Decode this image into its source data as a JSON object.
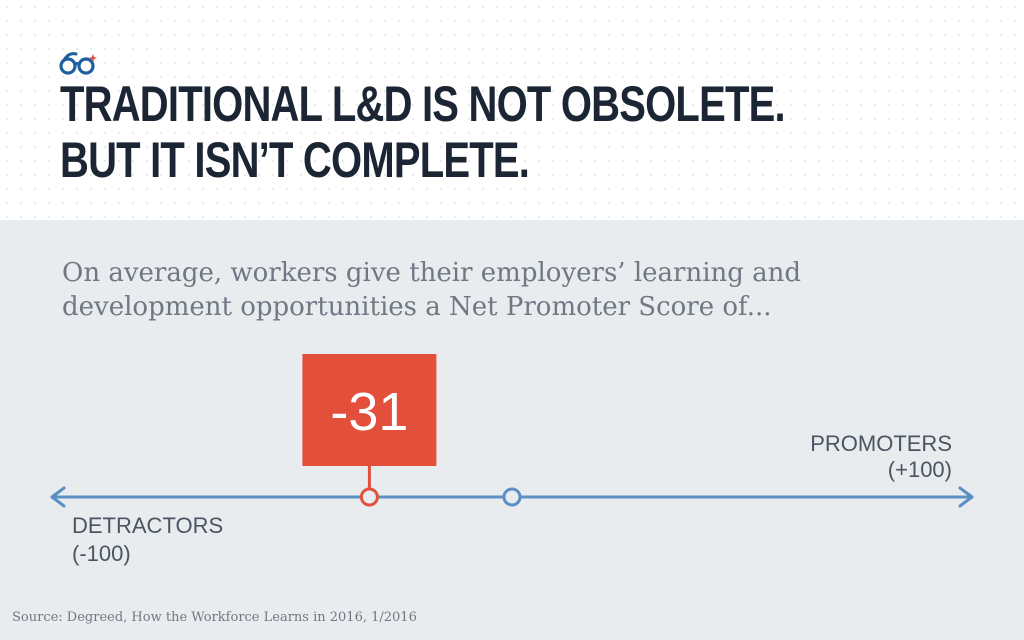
{
  "headline": {
    "line1": "TRADITIONAL L&D IS NOT OBSOLETE.",
    "line2": "BUT IT ISN’T COMPLETE."
  },
  "subtitle": {
    "line1": "On average, workers give their employers’ learning and",
    "line2": "development opportunities a Net Promoter Score of..."
  },
  "source": "Source: Degreed, How the Workforce Learns in 2016, 1/2016",
  "icon": "glasses-logo-icon",
  "colors": {
    "headline": "#1b2533",
    "axis": "#5b8fc4",
    "marker": "#e2503c",
    "subtitle_text": "#6f7883",
    "panel_bg": "#e9ecef"
  },
  "chart_data": {
    "type": "scale",
    "value": -31,
    "value_label": "-31",
    "min": -100,
    "max": 100,
    "midpoint": 0,
    "min_label": [
      "DETRACTORS",
      "(-100)"
    ],
    "max_label": [
      "PROMOTERS",
      "(+100)"
    ]
  }
}
